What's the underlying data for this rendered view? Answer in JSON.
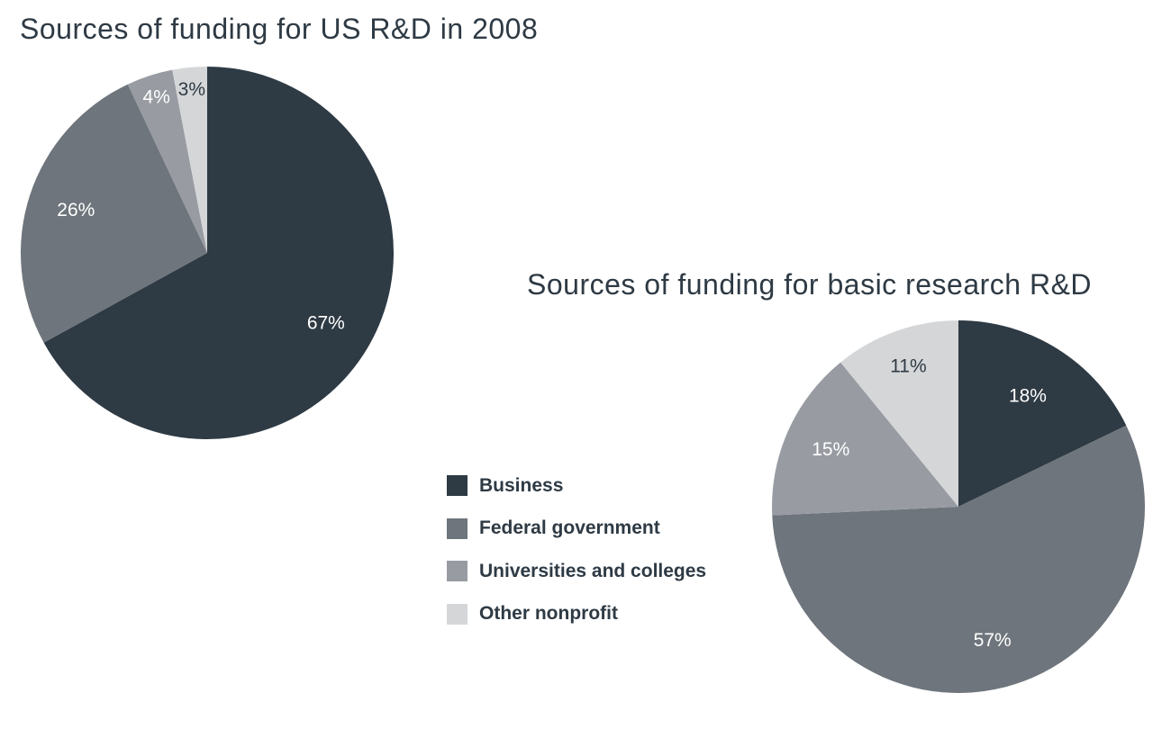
{
  "categories": [
    "Business",
    "Federal government",
    "Universities and colleges",
    "Other nonprofit"
  ],
  "colors": [
    "#2e3a44",
    "#6e757c",
    "#989ca2",
    "#d4d6d8"
  ],
  "chart_data": [
    {
      "type": "pie",
      "title": "Sources of funding for US R&D in 2008",
      "categories": [
        "Business",
        "Federal government",
        "Universities and colleges",
        "Other nonprofit"
      ],
      "values": [
        67,
        26,
        4,
        3
      ],
      "labels": [
        "67%",
        "26%",
        "4%",
        "3%"
      ],
      "start": "12 o'clock",
      "direction": "clockwise",
      "legend": "shared, lower-center"
    },
    {
      "type": "pie",
      "title": "Sources of funding for basic research R&D",
      "categories": [
        "Business",
        "Federal government",
        "Universities and colleges",
        "Other nonprofit"
      ],
      "values": [
        18,
        57,
        15,
        11
      ],
      "labels": [
        "18%",
        "57%",
        "15%",
        "11%"
      ],
      "start": "12 o'clock",
      "direction": "clockwise",
      "legend": "shared, lower-center"
    }
  ]
}
